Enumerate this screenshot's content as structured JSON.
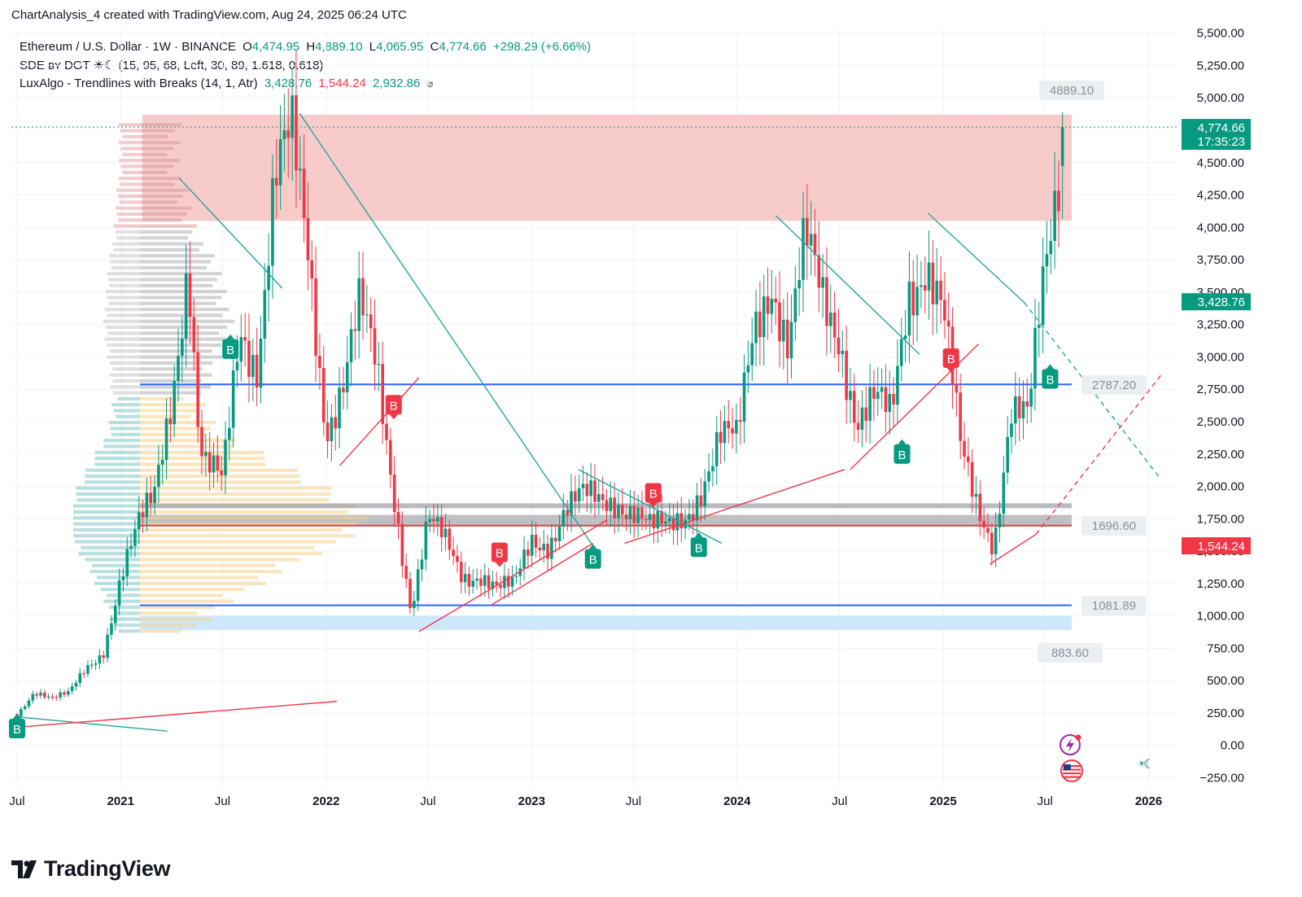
{
  "attribution": "ChartAnalysis_4 created with TradingView.com, Aug 24, 2025 06:24 UTC",
  "legend": {
    "symbol": "Ethereum / U.S. Dollar · 1W · BINANCE",
    "open_label": "O",
    "open": "4,474.95",
    "high_label": "H",
    "high": "4,889.10",
    "low_label": "L",
    "low": "4,065.95",
    "close_label": "C",
    "close": "4,774.66",
    "change": "+298.29 (+6.66%)",
    "indicator1": "SDE ʙʏ DGT ☀☾ (15, 95, 68, Left, 30, 89, 1.618, 0.618)",
    "indicator2_name": "LuxAlgo - Trendlines with Breaks (14, 1, Atr)",
    "indicator2_v1": "3,428.76",
    "indicator2_v2": "1,544.24",
    "indicator2_v3": "2,932.86",
    "indicator2_icon": "⌀"
  },
  "colors": {
    "up": "#089981",
    "down": "#f23645",
    "blue_line": "#2962ff",
    "resistance_zone": "#f7c5c5",
    "support_zone": "#c9e6fb",
    "trend_green": "#26a69a",
    "trend_red": "#f23645"
  },
  "chart_data": {
    "type": "candlestick",
    "title": "Ethereum / U.S. Dollar · 1W · BINANCE",
    "y_ticks": [
      "5,500.00",
      "5,250.00",
      "5,000.00",
      "4,750.00",
      "4,500.00",
      "4,250.00",
      "4,000.00",
      "3,750.00",
      "3,500.00",
      "3,250.00",
      "3,000.00",
      "2,750.00",
      "2,500.00",
      "2,250.00",
      "2,000.00",
      "1,750.00",
      "1,500.00",
      "1,250.00",
      "1,000.00",
      "750.00",
      "500.00",
      "250.00",
      "0.00",
      "−250.00"
    ],
    "y_tick_values": [
      5500,
      5250,
      5000,
      4750,
      4500,
      4250,
      4000,
      3750,
      3500,
      3250,
      3000,
      2750,
      2500,
      2250,
      2000,
      1750,
      1500,
      1250,
      1000,
      750,
      500,
      250,
      0,
      -250
    ],
    "ylim": [
      -250,
      5500
    ],
    "x_ticks": [
      {
        "label": "Jul",
        "date": "2020-07",
        "bold": false
      },
      {
        "label": "2021",
        "date": "2021-01",
        "bold": true
      },
      {
        "label": "Jul",
        "date": "2021-07",
        "bold": false
      },
      {
        "label": "2022",
        "date": "2022-01",
        "bold": true
      },
      {
        "label": "Jul",
        "date": "2022-07",
        "bold": false
      },
      {
        "label": "2023",
        "date": "2023-01",
        "bold": true
      },
      {
        "label": "Jul",
        "date": "2023-07",
        "bold": false
      },
      {
        "label": "2024",
        "date": "2024-01",
        "bold": true
      },
      {
        "label": "Jul",
        "date": "2024-07",
        "bold": false
      },
      {
        "label": "2025",
        "date": "2025-01",
        "bold": true
      },
      {
        "label": "Jul",
        "date": "2025-07",
        "bold": false
      },
      {
        "label": "2026",
        "date": "2026-01",
        "bold": true
      }
    ],
    "price_path": [
      [
        "2020-07",
        240
      ],
      [
        "2020-08",
        430
      ],
      [
        "2020-09",
        360
      ],
      [
        "2020-10",
        390
      ],
      [
        "2020-11",
        600
      ],
      [
        "2020-12",
        740
      ],
      [
        "2021-01",
        1300
      ],
      [
        "2021-02",
        1650
      ],
      [
        "2021-03",
        1900
      ],
      [
        "2021-04",
        2750
      ],
      [
        "2021-05",
        3800
      ],
      [
        "2021-05-20",
        2300
      ],
      [
        "2021-06",
        2100
      ],
      [
        "2021-07",
        2000
      ],
      [
        "2021-08",
        3300
      ],
      [
        "2021-09",
        3000
      ],
      [
        "2021-10",
        4300
      ],
      [
        "2021-11",
        4600
      ],
      [
        "2021-12",
        3800
      ],
      [
        "2022-01",
        2500
      ],
      [
        "2022-02",
        2800
      ],
      [
        "2022-03",
        3300
      ],
      [
        "2022-04",
        2900
      ],
      [
        "2022-05",
        2000
      ],
      [
        "2022-06",
        1050
      ],
      [
        "2022-07",
        1700
      ],
      [
        "2022-08",
        1550
      ],
      [
        "2022-09",
        1330
      ],
      [
        "2022-10",
        1350
      ],
      [
        "2022-11",
        1200
      ],
      [
        "2022-12",
        1200
      ],
      [
        "2023-01",
        1600
      ],
      [
        "2023-02",
        1600
      ],
      [
        "2023-03",
        1820
      ],
      [
        "2023-04",
        1880
      ],
      [
        "2023-05",
        1870
      ],
      [
        "2023-06",
        1930
      ],
      [
        "2023-07",
        1850
      ],
      [
        "2023-08",
        1650
      ],
      [
        "2023-09",
        1650
      ],
      [
        "2023-10",
        1800
      ],
      [
        "2023-11",
        2050
      ],
      [
        "2023-12",
        2350
      ],
      [
        "2024-01",
        2300
      ],
      [
        "2024-02",
        3300
      ],
      [
        "2024-03",
        3700
      ],
      [
        "2024-04",
        3050
      ],
      [
        "2024-05",
        3800
      ],
      [
        "2024-06",
        3450
      ],
      [
        "2024-07",
        3250
      ],
      [
        "2024-08",
        2500
      ],
      [
        "2024-09",
        2600
      ],
      [
        "2024-10",
        2500
      ],
      [
        "2024-11",
        3600
      ],
      [
        "2024-12",
        3800
      ],
      [
        "2025-01",
        3300
      ],
      [
        "2025-02",
        2250
      ],
      [
        "2025-03",
        1900
      ],
      [
        "2025-04",
        1600
      ],
      [
        "2025-05",
        2550
      ],
      [
        "2025-06",
        2450
      ],
      [
        "2025-07",
        3700
      ],
      [
        "2025-08",
        4774.66
      ]
    ],
    "levels": [
      {
        "label": "4889.10",
        "value": 4889.1
      },
      {
        "label": "2787.20",
        "value": 2787.2
      },
      {
        "label": "1696.60",
        "value": 1696.6
      },
      {
        "label": "1081.89",
        "value": 1081.89
      },
      {
        "label": "883.60",
        "value": 883.6
      }
    ],
    "zones": [
      {
        "name": "resistance",
        "from": 4050,
        "to": 4870
      },
      {
        "name": "support",
        "from": 890,
        "to": 1000
      },
      {
        "name": "value-area",
        "from": 1700,
        "to": 1780
      }
    ],
    "price_labels": [
      {
        "label": "4,774.66",
        "sub": "17:35:23",
        "value": 4774.66,
        "color": "#089981"
      },
      {
        "label": "3,428.76",
        "value": 3428.76,
        "color": "#089981"
      },
      {
        "label": "1,544.24",
        "value": 1544.24,
        "color": "#f23645"
      }
    ],
    "signals": [
      {
        "label": "B",
        "type": "bull",
        "date": "2020-07",
        "value": 130
      },
      {
        "label": "B",
        "type": "bull",
        "date": "2021-07-15",
        "value": 3060
      },
      {
        "label": "B",
        "type": "bear",
        "date": "2022-05-01",
        "value": 2630
      },
      {
        "label": "B",
        "type": "bear",
        "date": "2022-11-05",
        "value": 1490
      },
      {
        "label": "B",
        "type": "bull",
        "date": "2023-04-20",
        "value": 1440
      },
      {
        "label": "B",
        "type": "bear",
        "date": "2023-08-05",
        "value": 1950
      },
      {
        "label": "B",
        "type": "bull",
        "date": "2023-10-25",
        "value": 1530
      },
      {
        "label": "B",
        "type": "bull",
        "date": "2024-10-20",
        "value": 2250
      },
      {
        "label": "B",
        "type": "bear",
        "date": "2025-01-15",
        "value": 2990
      },
      {
        "label": "B",
        "type": "bull",
        "date": "2025-07-10",
        "value": 2830
      }
    ]
  }
}
